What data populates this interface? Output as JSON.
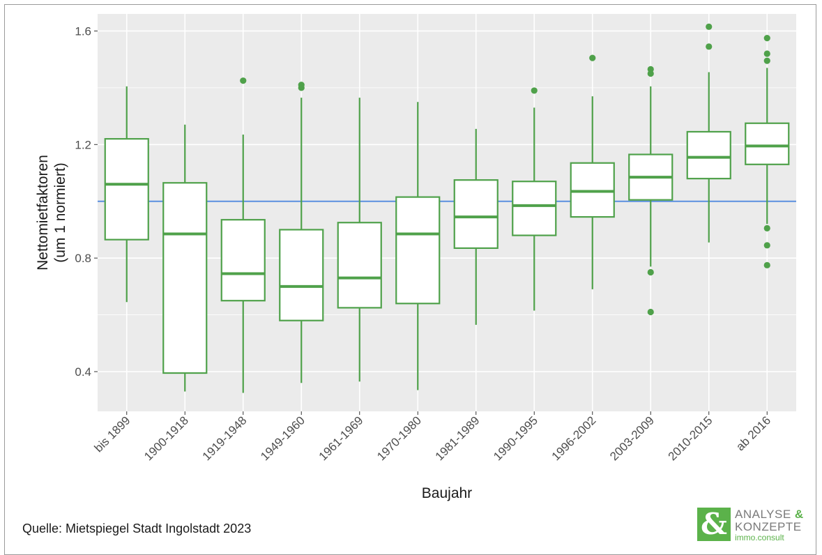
{
  "chart_data": {
    "type": "boxplot",
    "xlabel": "Baujahr",
    "ylabel_line1": "Nettomietfaktoren",
    "ylabel_line2": "(um 1 normiert)",
    "y_ticks": [
      0.4,
      0.8,
      1.2,
      1.6
    ],
    "y_tick_labels": [
      "0.4",
      "0.8",
      "1.2",
      "1.6"
    ],
    "ylim": [
      0.26,
      1.66
    ],
    "reference_line": 1.0,
    "grid": true,
    "colors": {
      "box": "#4fa14a",
      "reference": "#5b8fe0",
      "panel": "#ebebeb",
      "grid": "#ffffff"
    },
    "categories": [
      "bis 1899",
      "1900-1918",
      "1919-1948",
      "1949-1960",
      "1961-1969",
      "1970-1980",
      "1981-1989",
      "1990-1995",
      "1996-2002",
      "2003-2009",
      "2010-2015",
      "ab 2016"
    ],
    "boxes": [
      {
        "whisker_low": 0.645,
        "q1": 0.865,
        "median": 1.06,
        "q3": 1.22,
        "whisker_high": 1.405,
        "outliers": []
      },
      {
        "whisker_low": 0.33,
        "q1": 0.395,
        "median": 0.885,
        "q3": 1.065,
        "whisker_high": 1.27,
        "outliers": []
      },
      {
        "whisker_low": 0.325,
        "q1": 0.65,
        "median": 0.745,
        "q3": 0.935,
        "whisker_high": 1.235,
        "outliers": [
          1.425
        ]
      },
      {
        "whisker_low": 0.36,
        "q1": 0.58,
        "median": 0.7,
        "q3": 0.9,
        "whisker_high": 1.365,
        "outliers": [
          1.4,
          1.41
        ]
      },
      {
        "whisker_low": 0.365,
        "q1": 0.625,
        "median": 0.73,
        "q3": 0.925,
        "whisker_high": 1.365,
        "outliers": []
      },
      {
        "whisker_low": 0.335,
        "q1": 0.64,
        "median": 0.885,
        "q3": 1.015,
        "whisker_high": 1.35,
        "outliers": []
      },
      {
        "whisker_low": 0.565,
        "q1": 0.835,
        "median": 0.945,
        "q3": 1.075,
        "whisker_high": 1.255,
        "outliers": []
      },
      {
        "whisker_low": 0.615,
        "q1": 0.88,
        "median": 0.985,
        "q3": 1.07,
        "whisker_high": 1.33,
        "outliers": [
          1.39
        ]
      },
      {
        "whisker_low": 0.69,
        "q1": 0.945,
        "median": 1.035,
        "q3": 1.135,
        "whisker_high": 1.37,
        "outliers": [
          1.505
        ]
      },
      {
        "whisker_low": 0.77,
        "q1": 1.005,
        "median": 1.085,
        "q3": 1.165,
        "whisker_high": 1.405,
        "outliers": [
          0.75,
          0.61,
          1.45,
          1.465
        ]
      },
      {
        "whisker_low": 0.855,
        "q1": 1.08,
        "median": 1.155,
        "q3": 1.245,
        "whisker_high": 1.455,
        "outliers": [
          1.545,
          1.615
        ]
      },
      {
        "whisker_low": 0.92,
        "q1": 1.13,
        "median": 1.195,
        "q3": 1.275,
        "whisker_high": 1.47,
        "outliers": [
          0.905,
          0.845,
          0.775,
          1.495,
          1.52,
          1.575
        ]
      }
    ]
  },
  "footer": {
    "source": "Quelle: Mietspiegel Stadt Ingolstadt 2023"
  },
  "logo": {
    "mark": "&",
    "line1": "ANALYSE",
    "line1_amp": "&",
    "line2": "KONZEPTE",
    "line3": "immo.consult"
  }
}
